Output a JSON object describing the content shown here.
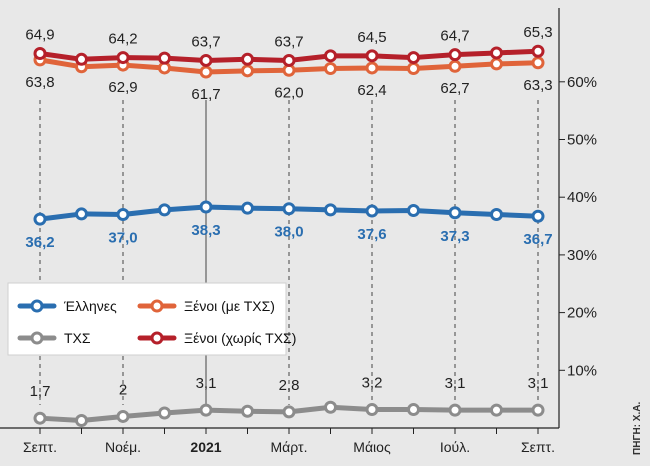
{
  "chart_data": {
    "type": "line",
    "title": "",
    "xlabel": "",
    "ylabel": "",
    "x_labels": [
      "Σεπτ.",
      "",
      "Νοέμ.",
      "",
      "2021",
      "",
      "Μάρτ.",
      "",
      "Μάιος",
      "",
      "Ιούλ.",
      "",
      "Σεπτ."
    ],
    "bold_x_labels": [
      "2021"
    ],
    "y_axis_right": true,
    "yticks": [
      "10%",
      "20%",
      "30%",
      "40%",
      "50%",
      "60%"
    ],
    "ylim": [
      0,
      70
    ],
    "grid": false,
    "legend_placement": "center-left",
    "series": [
      {
        "name": "Έλληνες",
        "color": "#2a6eb0",
        "values": [
          36.2,
          37.1,
          37.0,
          37.8,
          38.3,
          38.1,
          38.0,
          37.8,
          37.6,
          37.7,
          37.3,
          37.0,
          36.7
        ],
        "labels": [
          "36,2",
          "",
          "37,0",
          "",
          "38,3",
          "",
          "38,0",
          "",
          "37,6",
          "",
          "37,3",
          "",
          "36,7"
        ]
      },
      {
        "name": "Ξένοι (με ΤΧΣ)",
        "color": "#e0643a",
        "values": [
          63.8,
          62.6,
          62.9,
          62.4,
          61.7,
          61.9,
          62.0,
          62.3,
          62.4,
          62.3,
          62.7,
          63.1,
          63.3
        ],
        "labels": [
          "63,8",
          "",
          "62,9",
          "",
          "61,7",
          "",
          "62,0",
          "",
          "62,4",
          "",
          "62,7",
          "",
          "63,3"
        ]
      },
      {
        "name": "ΤΧΣ",
        "color": "#8c8c8c",
        "values": [
          1.7,
          1.3,
          2.0,
          2.6,
          3.1,
          2.9,
          2.8,
          3.6,
          3.2,
          3.2,
          3.1,
          3.1,
          3.1
        ],
        "labels": [
          "1,7",
          "",
          "2",
          "",
          "3,1",
          "",
          "2,8",
          "",
          "3,2",
          "",
          "3,1",
          "",
          "3,1"
        ]
      },
      {
        "name": "Ξένοι (χωρίς ΤΧΣ)",
        "color": "#b5202a",
        "values": [
          64.9,
          63.9,
          64.2,
          64.1,
          63.7,
          63.9,
          63.7,
          64.5,
          64.5,
          64.2,
          64.7,
          65.0,
          65.3
        ],
        "labels": [
          "64,9",
          "",
          "64,2",
          "",
          "63,7",
          "",
          "63,7",
          "",
          "64,5",
          "",
          "64,7",
          "",
          "65,3"
        ]
      }
    ],
    "legend_order": [
      "Έλληνες",
      "Ξένοι (με ΤΧΣ)",
      "ΤΧΣ",
      "Ξένοι (χωρίς ΤΧΣ)"
    ]
  },
  "source": {
    "text": "ΠΗΓΗ: Χ.Α."
  }
}
